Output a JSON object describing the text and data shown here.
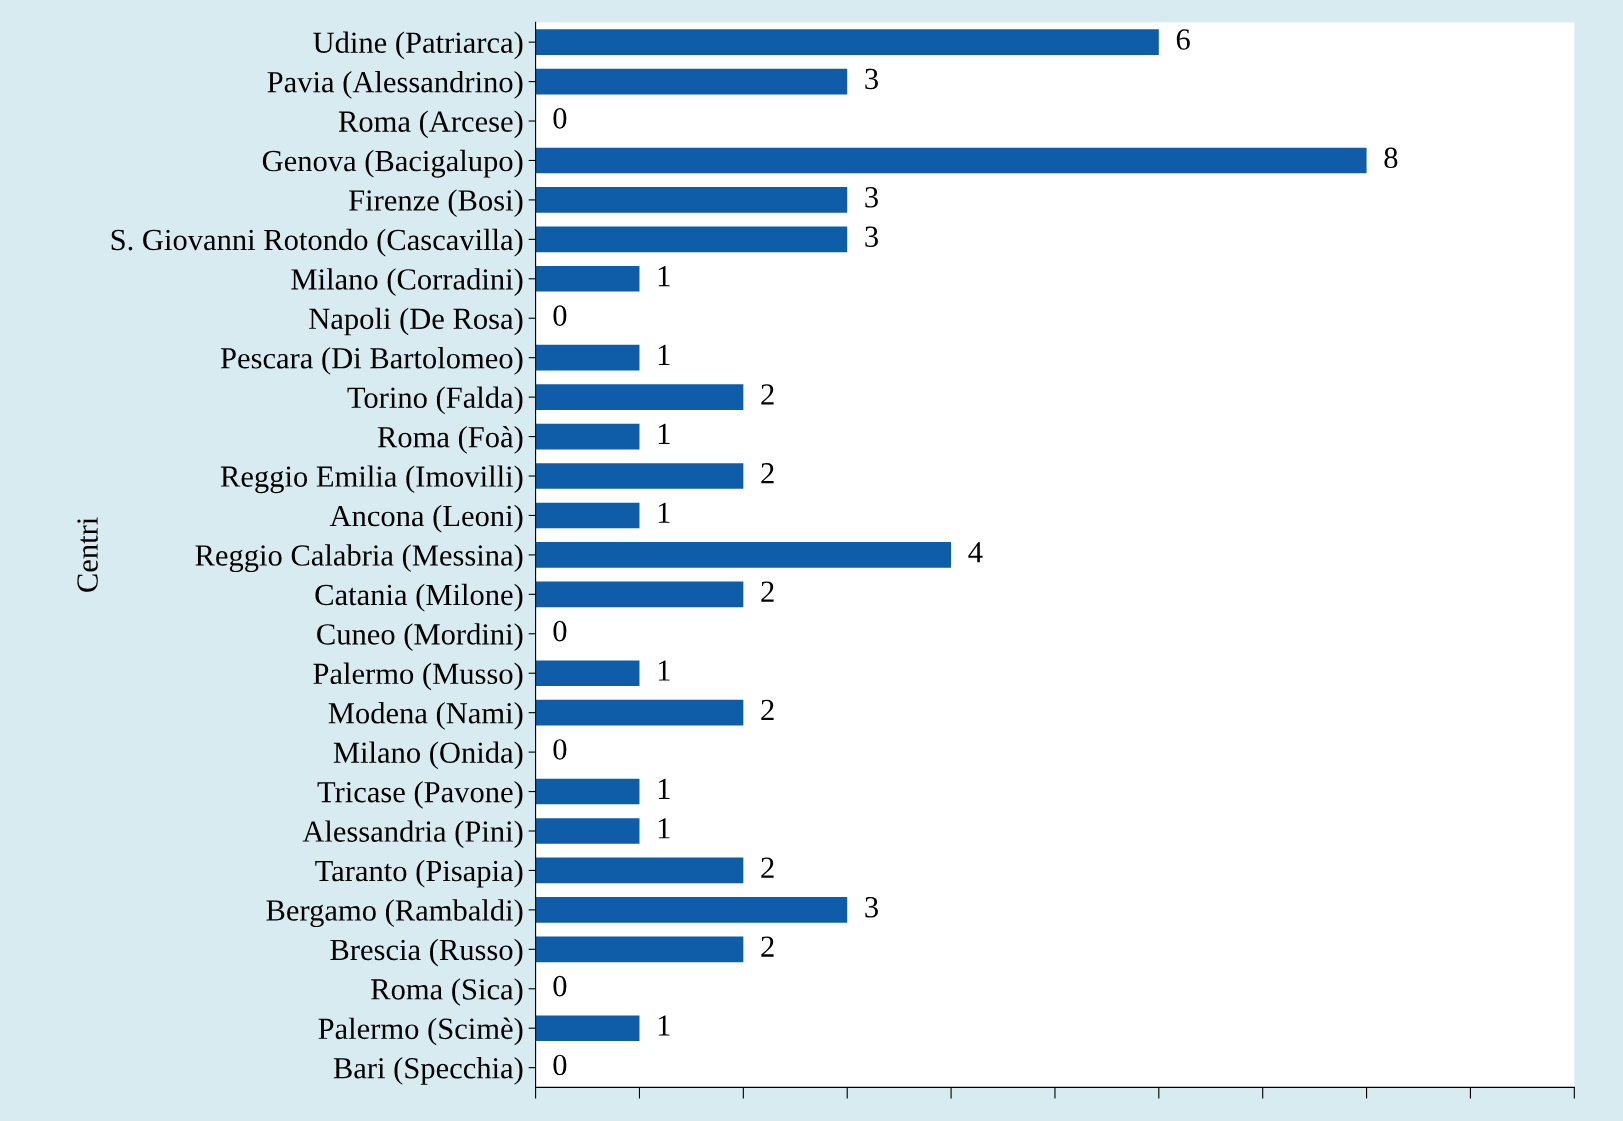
{
  "chart_data": {
    "type": "bar",
    "orientation": "horizontal",
    "ylabel": "Centri",
    "categories": [
      "Udine (Patriarca)",
      "Pavia (Alessandrino)",
      "Roma (Arcese)",
      "Genova (Bacigalupo)",
      "Firenze (Bosi)",
      "S. Giovanni Rotondo (Cascavilla)",
      "Milano (Corradini)",
      "Napoli (De Rosa)",
      "Pescara (Di Bartolomeo)",
      "Torino (Falda)",
      "Roma (Foà)",
      "Reggio Emilia (Imovilli)",
      "Ancona (Leoni)",
      "Reggio Calabria (Messina)",
      "Catania (Milone)",
      "Cuneo (Mordini)",
      "Palermo (Musso)",
      "Modena (Nami)",
      "Milano (Onida)",
      "Tricase (Pavone)",
      "Alessandria (Pini)",
      "Taranto (Pisapia)",
      "Bergamo (Rambaldi)",
      "Brescia (Russo)",
      "Roma (Sica)",
      "Palermo (Scimè)",
      "Bari (Specchia)"
    ],
    "values": [
      6,
      3,
      0,
      8,
      3,
      3,
      1,
      0,
      1,
      2,
      1,
      2,
      1,
      4,
      2,
      0,
      1,
      2,
      0,
      1,
      1,
      2,
      3,
      2,
      0,
      1,
      0
    ],
    "color": "#0f5ca8",
    "data_labels": true,
    "xlim": [
      0,
      10
    ],
    "xticks": [
      {
        "value": 0,
        "label": null
      },
      {
        "value": 1,
        "label": null
      },
      {
        "value": 2,
        "label": null
      },
      {
        "value": 3,
        "label": null
      },
      {
        "value": 4,
        "label": null
      },
      {
        "value": 5,
        "label": null
      },
      {
        "value": 6,
        "label": null
      },
      {
        "value": 7,
        "label": null
      },
      {
        "value": 8,
        "label": null
      },
      {
        "value": 9,
        "label": null
      },
      {
        "value": 10,
        "label": null
      }
    ],
    "tick_labels": "y",
    "grid": false,
    "legend": false
  }
}
